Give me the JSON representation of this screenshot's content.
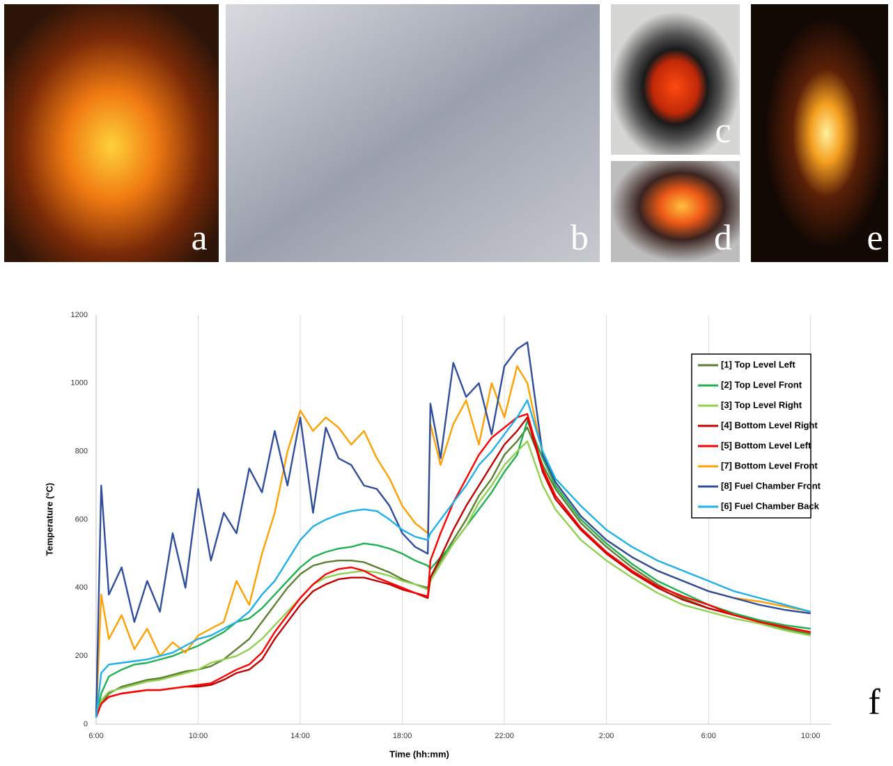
{
  "photos": [
    {
      "label": "a"
    },
    {
      "label": "b"
    },
    {
      "label": "c"
    },
    {
      "label": "d"
    },
    {
      "label": "e"
    }
  ],
  "chart_data": {
    "type": "line",
    "panel_label": "f",
    "x_label": "Time (hh:mm)",
    "y_label": "Temperature (°C)",
    "x": [
      6,
      6.2,
      6.5,
      7,
      7.5,
      8,
      8.5,
      9,
      9.5,
      10,
      10.5,
      11,
      11.5,
      12,
      12.5,
      13,
      13.5,
      14,
      14.5,
      15,
      15.5,
      16,
      16.5,
      17,
      17.5,
      18,
      18.5,
      19,
      19.1,
      19.5,
      20,
      20.5,
      21,
      21.5,
      22,
      22.5,
      22.9,
      23.5,
      24,
      25,
      26,
      27,
      28,
      29,
      30,
      31,
      32,
      33,
      34
    ],
    "series": [
      {
        "name": "[1] Top Level Left",
        "color": "#5b7f2e",
        "values": [
          20,
          60,
          90,
          110,
          120,
          130,
          135,
          145,
          155,
          160,
          170,
          190,
          220,
          250,
          300,
          350,
          400,
          440,
          465,
          475,
          480,
          480,
          475,
          460,
          445,
          425,
          410,
          400,
          430,
          480,
          540,
          600,
          670,
          720,
          790,
          830,
          870,
          760,
          690,
          590,
          520,
          460,
          410,
          370,
          340,
          320,
          300,
          280,
          265
        ]
      },
      {
        "name": "[2] Top Level Front",
        "color": "#1fb04f",
        "values": [
          20,
          90,
          140,
          160,
          175,
          180,
          190,
          200,
          215,
          230,
          250,
          270,
          300,
          310,
          340,
          380,
          420,
          460,
          490,
          505,
          515,
          520,
          530,
          525,
          515,
          500,
          480,
          465,
          455,
          490,
          530,
          580,
          630,
          680,
          740,
          790,
          890,
          780,
          700,
          600,
          530,
          470,
          420,
          385,
          350,
          325,
          305,
          290,
          280
        ]
      },
      {
        "name": "[3] Top Level Right",
        "color": "#8fd14f",
        "values": [
          20,
          70,
          95,
          105,
          115,
          125,
          130,
          140,
          150,
          160,
          180,
          190,
          200,
          220,
          250,
          290,
          330,
          370,
          410,
          430,
          440,
          445,
          450,
          445,
          435,
          420,
          410,
          395,
          420,
          470,
          530,
          580,
          650,
          700,
          760,
          800,
          830,
          700,
          630,
          540,
          480,
          430,
          385,
          350,
          330,
          310,
          295,
          275,
          260
        ]
      },
      {
        "name": "[4] Bottom Level Right",
        "color": "#c00000",
        "values": [
          20,
          60,
          80,
          90,
          95,
          100,
          100,
          105,
          110,
          110,
          115,
          130,
          150,
          160,
          190,
          250,
          300,
          350,
          390,
          410,
          425,
          430,
          430,
          420,
          410,
          395,
          385,
          370,
          430,
          490,
          570,
          640,
          700,
          760,
          820,
          860,
          900,
          740,
          660,
          570,
          500,
          445,
          400,
          365,
          340,
          320,
          300,
          285,
          270
        ]
      },
      {
        "name": "[5] Bottom Level Left",
        "color": "#ff0000",
        "values": [
          20,
          60,
          80,
          90,
          95,
          100,
          100,
          105,
          110,
          115,
          120,
          140,
          160,
          175,
          210,
          270,
          320,
          370,
          410,
          440,
          455,
          460,
          450,
          430,
          415,
          400,
          385,
          375,
          480,
          560,
          650,
          720,
          790,
          840,
          870,
          900,
          910,
          750,
          670,
          575,
          505,
          450,
          405,
          375,
          350,
          320,
          300,
          285,
          270
        ]
      },
      {
        "name": "[7] Bottom Level Front",
        "color": "#ffa000",
        "values": [
          20,
          380,
          250,
          320,
          220,
          280,
          200,
          240,
          210,
          260,
          280,
          300,
          420,
          350,
          500,
          620,
          800,
          920,
          860,
          900,
          870,
          820,
          860,
          780,
          720,
          640,
          590,
          560,
          880,
          760,
          880,
          950,
          820,
          1000,
          900,
          1050,
          1000,
          790,
          710,
          610,
          540,
          490,
          450,
          420,
          390,
          370,
          360,
          345,
          330
        ]
      },
      {
        "name": "[8] Fuel Chamber Front",
        "color": "#2f4d9c",
        "values": [
          20,
          700,
          380,
          460,
          300,
          420,
          330,
          560,
          400,
          690,
          480,
          620,
          560,
          750,
          680,
          860,
          700,
          900,
          620,
          870,
          780,
          760,
          700,
          690,
          640,
          560,
          520,
          500,
          940,
          780,
          1060,
          960,
          1000,
          850,
          1050,
          1100,
          1120,
          790,
          710,
          610,
          540,
          490,
          450,
          420,
          390,
          370,
          350,
          335,
          325
        ]
      },
      {
        "name": "[6] Fuel Chamber Back",
        "color": "#1eb0e8",
        "values": [
          20,
          150,
          175,
          180,
          185,
          190,
          200,
          210,
          230,
          250,
          260,
          280,
          300,
          330,
          380,
          420,
          480,
          540,
          580,
          600,
          615,
          625,
          630,
          625,
          600,
          570,
          550,
          540,
          560,
          600,
          650,
          700,
          760,
          800,
          850,
          900,
          950,
          800,
          720,
          640,
          570,
          520,
          480,
          450,
          420,
          390,
          370,
          350,
          330
        ]
      }
    ],
    "xlim": [
      6,
      34.8
    ],
    "ylim": [
      0,
      1200
    ],
    "xticks": [
      {
        "value": 6,
        "label": "6:00"
      },
      {
        "value": 10,
        "label": "10:00"
      },
      {
        "value": 14,
        "label": "14:00"
      },
      {
        "value": 18,
        "label": "18:00"
      },
      {
        "value": 22,
        "label": "22:00"
      },
      {
        "value": 26,
        "label": "2:00"
      },
      {
        "value": 30,
        "label": "6:00"
      },
      {
        "value": 34,
        "label": "10:00"
      }
    ],
    "yticks": [
      0,
      200,
      400,
      600,
      800,
      1000,
      1200
    ],
    "grid": "x",
    "legend": "right"
  }
}
